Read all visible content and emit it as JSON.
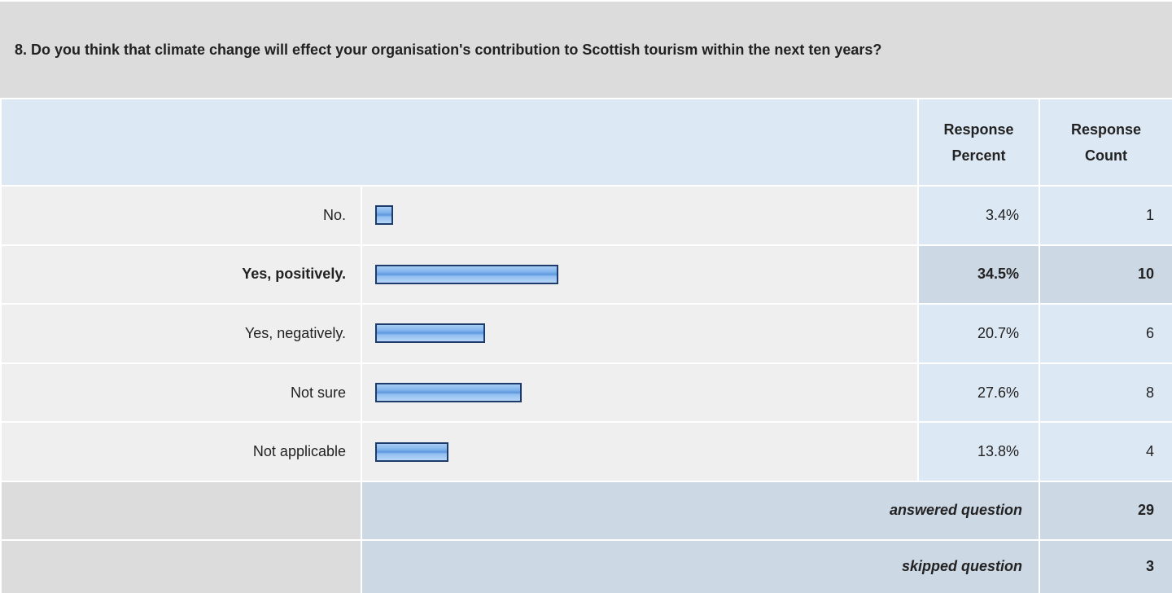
{
  "question": "8. Do you think that climate change will effect your organisation's contribution to Scottish tourism within the next ten years?",
  "table": {
    "headers": [
      "Response Percent",
      "Response Count"
    ],
    "rows": [
      {
        "label": "No.",
        "percent": 3.4,
        "percent_label": "3.4%",
        "count": 1,
        "highlight": false
      },
      {
        "label": "Yes, positively.",
        "percent": 34.5,
        "percent_label": "34.5%",
        "count": 10,
        "highlight": true
      },
      {
        "label": "Yes, negatively.",
        "percent": 20.7,
        "percent_label": "20.7%",
        "count": 6,
        "highlight": false
      },
      {
        "label": "Not sure",
        "percent": 27.6,
        "percent_label": "27.6%",
        "count": 8,
        "highlight": false
      },
      {
        "label": "Not applicable",
        "percent": 13.8,
        "percent_label": "13.8%",
        "count": 4,
        "highlight": false
      }
    ],
    "answered": {
      "label": "answered question",
      "count": 29
    },
    "skipped": {
      "label": "skipped question",
      "count": 3
    }
  }
}
